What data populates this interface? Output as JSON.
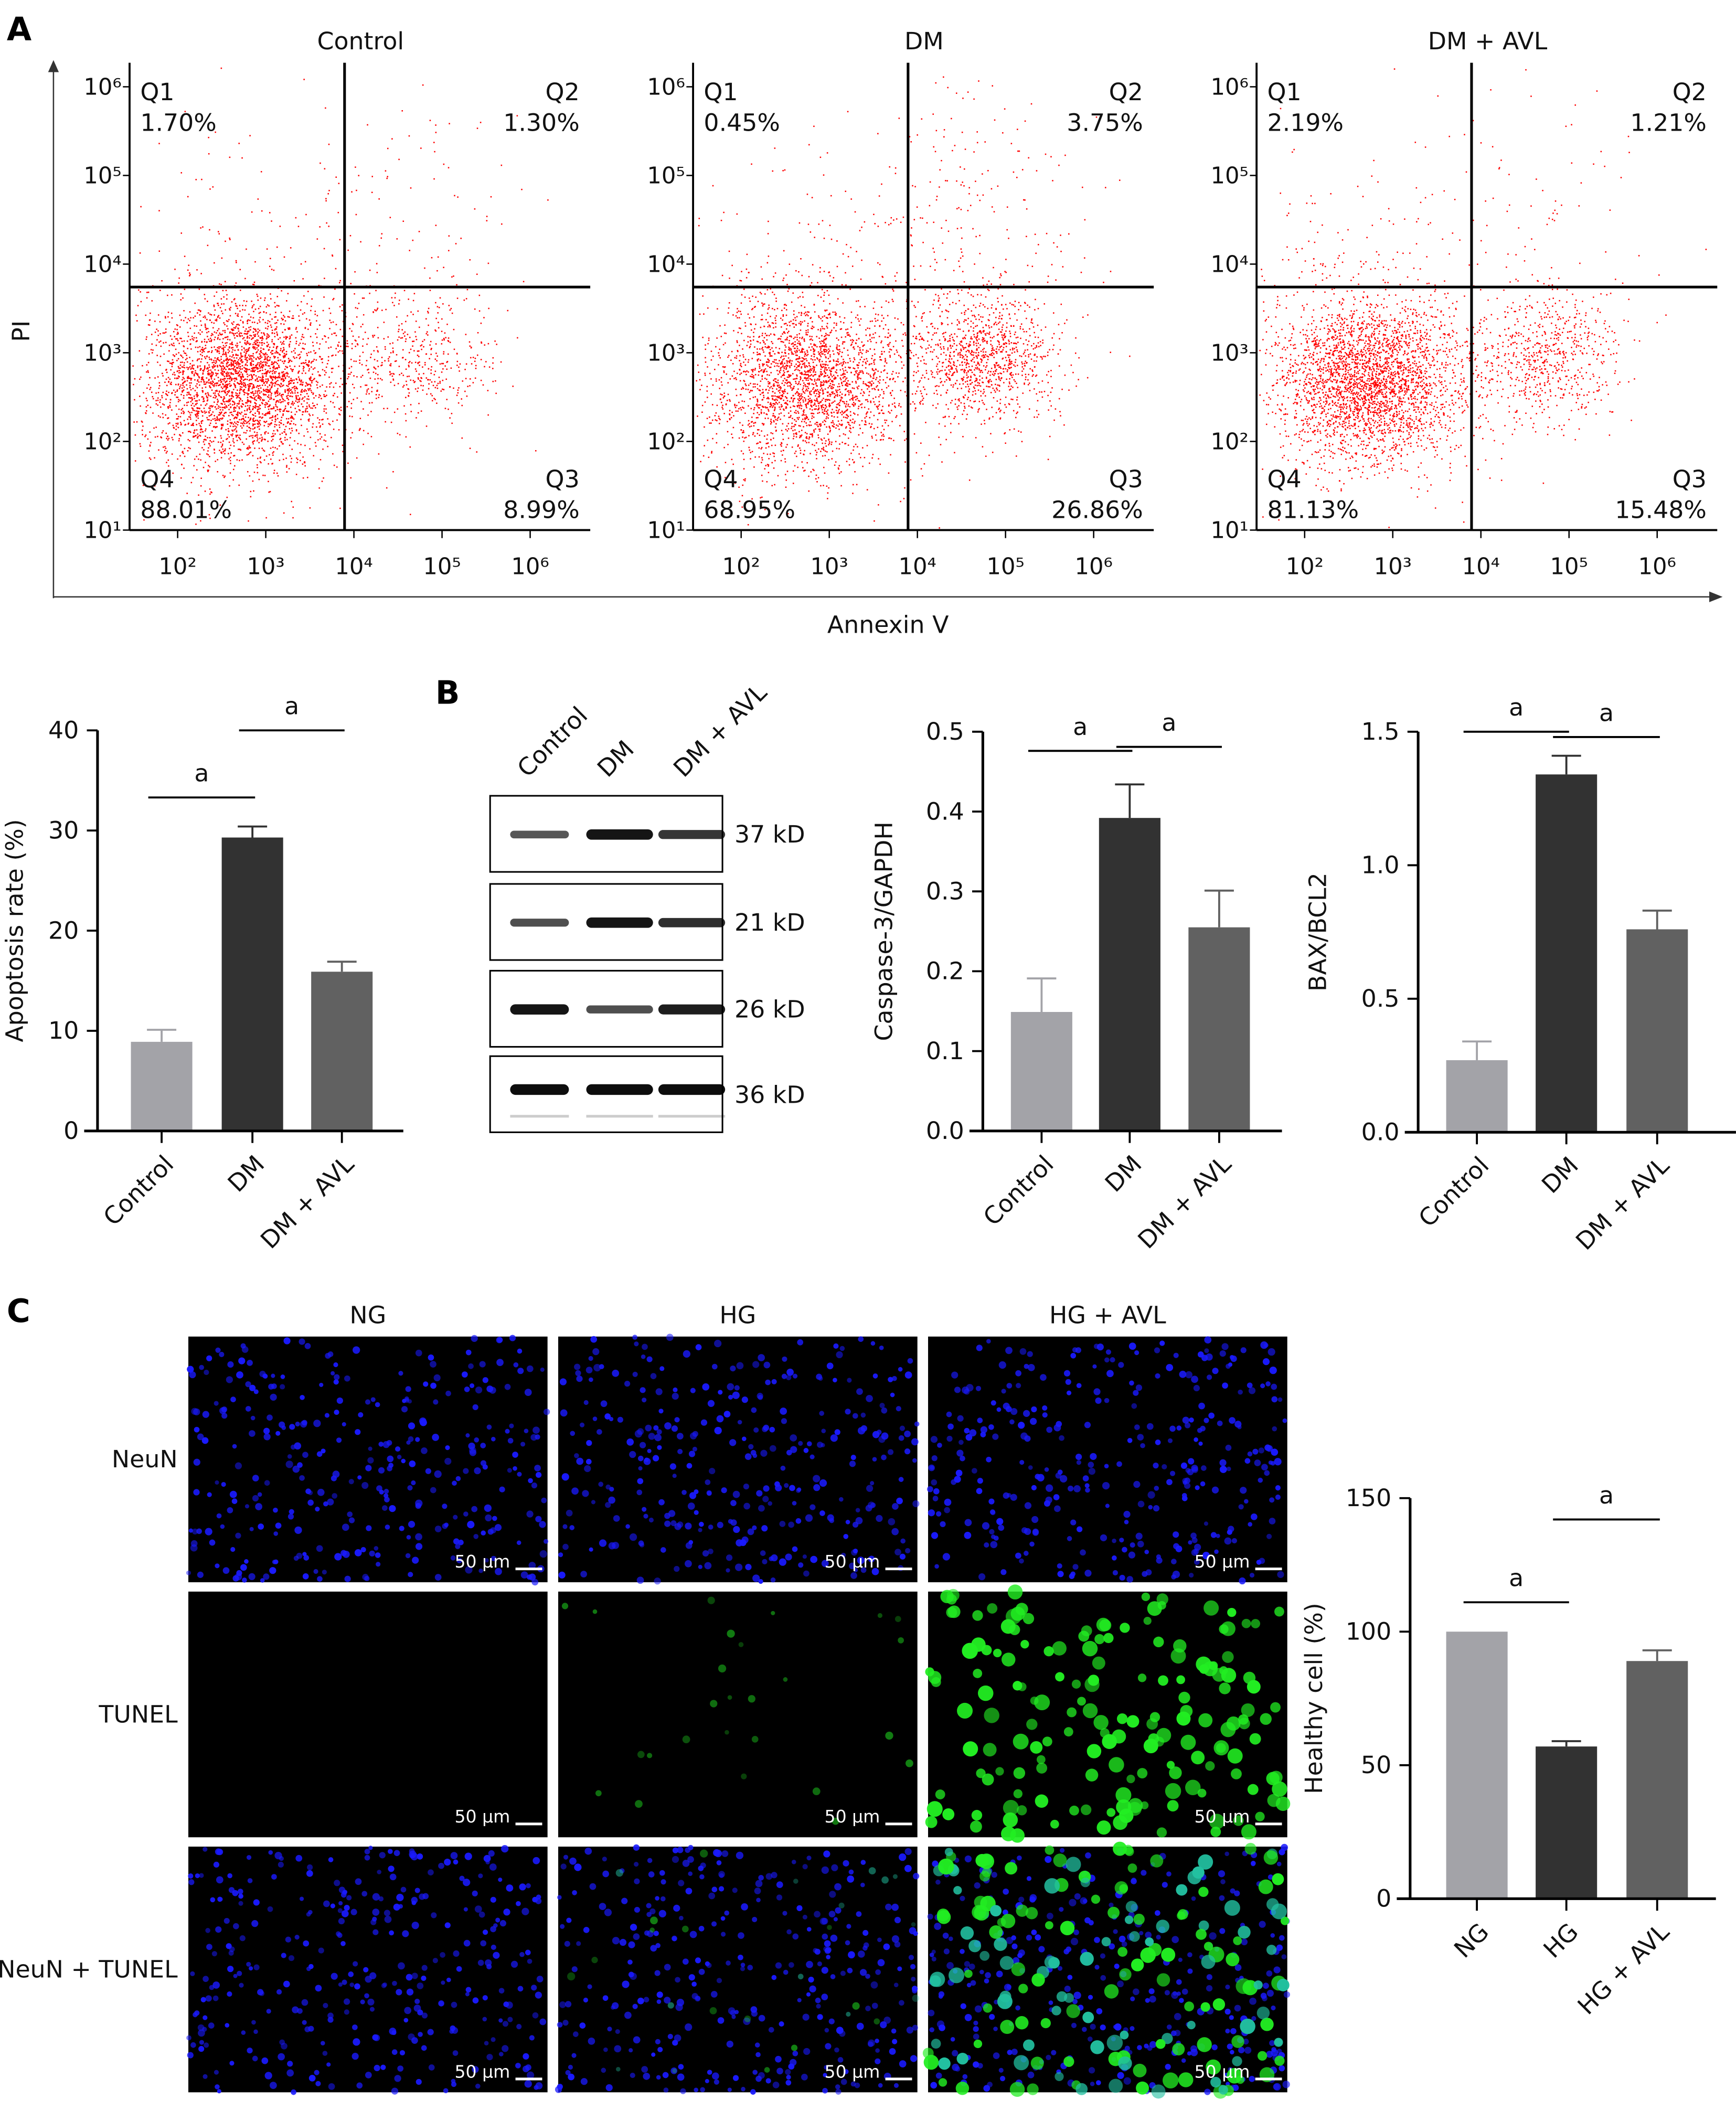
{
  "panel_labels": {
    "a": "A",
    "b": "B",
    "c": "C"
  },
  "chart_data": [
    {
      "type": "scatter",
      "id": "flow",
      "xlabel": "Annexin V",
      "ylabel": "PI",
      "axis_scale": "log",
      "x_ticks": [
        "10²",
        "10³",
        "10⁴",
        "10⁵",
        "10⁶"
      ],
      "y_ticks": [
        "10⁶",
        "10⁵",
        "10⁴",
        "10³",
        "10²",
        "10¹"
      ],
      "quadrant_names": [
        "Q1",
        "Q2",
        "Q3",
        "Q4"
      ],
      "panels": [
        {
          "title": "Control",
          "q1": "1.70%",
          "q2": "1.30%",
          "q3": "8.99%",
          "q4": "88.01%"
        },
        {
          "title": "DM",
          "q1": "0.45%",
          "q2": "3.75%",
          "q3": "26.86%",
          "q4": "68.95%"
        },
        {
          "title": "DM + AVL",
          "q1": "2.19%",
          "q2": "1.21%",
          "q3": "15.48%",
          "q4": "81.13%"
        }
      ],
      "point_color": "#ff0000"
    },
    {
      "type": "bar",
      "id": "apoptosis",
      "ylabel": "Apoptosis rate (%)",
      "categories": [
        "Control",
        "DM",
        "DM + AVL"
      ],
      "values": [
        8.9,
        29.3,
        15.9
      ],
      "errors": [
        1.2,
        1.1,
        1.0
      ],
      "ylim": [
        0,
        40
      ],
      "yticks": [
        "0",
        "10",
        "20",
        "30",
        "40"
      ],
      "significance": [
        {
          "pair": [
            0,
            1
          ],
          "label": "a",
          "level": 33.3
        },
        {
          "pair": [
            1,
            2
          ],
          "label": "a",
          "level": 40
        }
      ]
    },
    {
      "type": "bar",
      "id": "caspase",
      "ylabel": "Caspase-3/GAPDH",
      "categories": [
        "Control",
        "DM",
        "DM + AVL"
      ],
      "values": [
        0.149,
        0.392,
        0.255
      ],
      "errors": [
        0.042,
        0.042,
        0.046
      ],
      "ylim": [
        0,
        0.5
      ],
      "yticks": [
        "0.0",
        "0.1",
        "0.2",
        "0.3",
        "0.4",
        "0.5"
      ],
      "significance": [
        {
          "pair": [
            0,
            1
          ],
          "label": "a",
          "level": 0.476
        },
        {
          "pair": [
            1,
            2
          ],
          "label": "a",
          "level": 0.481
        }
      ]
    },
    {
      "type": "bar",
      "id": "baxbcl2",
      "ylabel": "BAX/BCL2",
      "categories": [
        "Control",
        "DM",
        "DM + AVL"
      ],
      "values": [
        0.27,
        1.34,
        0.76
      ],
      "errors": [
        0.07,
        0.07,
        0.07
      ],
      "ylim": [
        0,
        1.5
      ],
      "yticks": [
        "0.0",
        "0.5",
        "1.0",
        "1.5"
      ],
      "significance": [
        {
          "pair": [
            0,
            1
          ],
          "label": "a",
          "level": 1.5
        },
        {
          "pair": [
            1,
            2
          ],
          "label": "a",
          "level": 1.48
        }
      ]
    },
    {
      "type": "bar",
      "id": "healthy",
      "ylabel": "Healthy cell (%)",
      "categories": [
        "NG",
        "HG",
        "HG + AVL"
      ],
      "values": [
        100,
        57,
        89
      ],
      "errors": [
        0,
        2,
        4
      ],
      "ylim": [
        0,
        150
      ],
      "yticks": [
        "0",
        "50",
        "100",
        "150"
      ],
      "significance": [
        {
          "pair": [
            0,
            1
          ],
          "label": "a",
          "level": 111
        },
        {
          "pair": [
            1,
            2
          ],
          "label": "a",
          "level": 142
        }
      ]
    }
  ],
  "bar_colors": [
    "#a3a3a8",
    "#323232",
    "#616161"
  ],
  "western_blot": {
    "lanes": [
      "Control",
      "DM",
      "DM + AVL"
    ],
    "bands": [
      {
        "kd": "37 kD",
        "intensity": [
          0.55,
          0.95,
          0.75
        ]
      },
      {
        "kd": "21 kD",
        "intensity": [
          0.6,
          0.95,
          0.8
        ]
      },
      {
        "kd": "26 kD",
        "intensity": [
          0.95,
          0.6,
          0.9
        ]
      },
      {
        "kd": "36 kD",
        "intensity": [
          1.0,
          1.0,
          1.0
        ]
      }
    ]
  },
  "microscopy": {
    "columns": [
      "NG",
      "HG",
      "HG + AVL"
    ],
    "rows": [
      "NeuN",
      "TUNEL",
      "NeuN + TUNEL"
    ],
    "scale_bar": "50 μm",
    "tunel_density": [
      0,
      0.15,
      1.0
    ]
  }
}
